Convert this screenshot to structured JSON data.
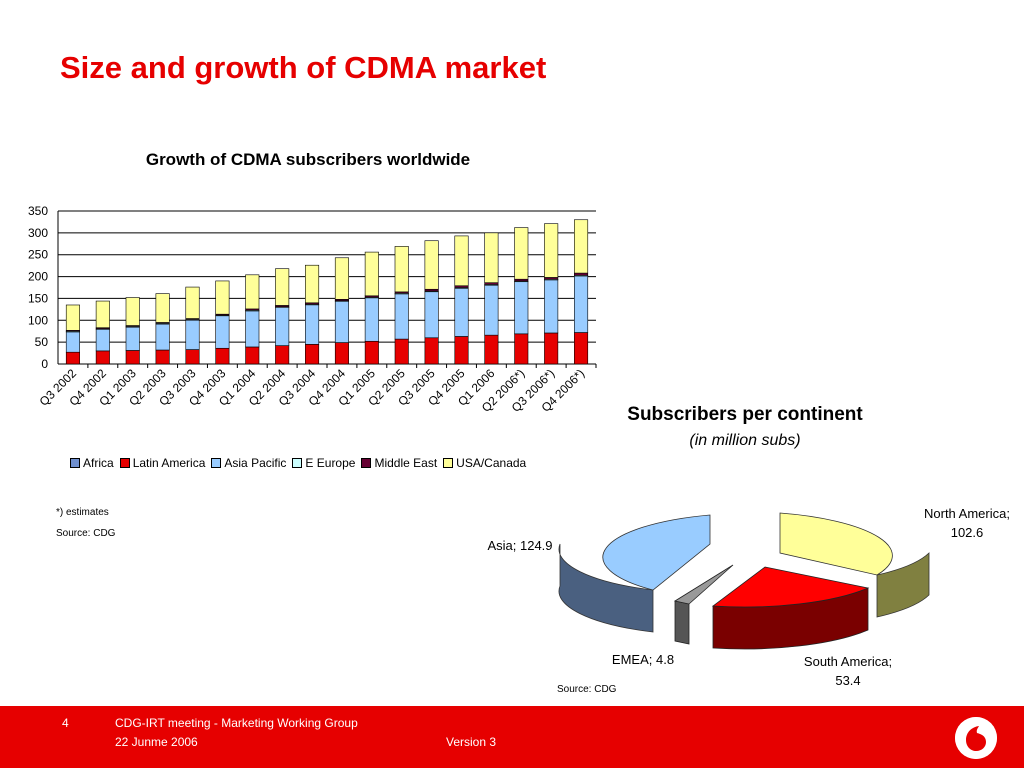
{
  "slide": {
    "title": "Size and growth of CDMA market"
  },
  "bar_chart": {
    "title": "Growth of CDMA subscribers worldwide",
    "footnote": "*) estimates",
    "source": "Source: CDG"
  },
  "pie_chart": {
    "title": "Subscribers per continent",
    "subtitle": "(in million subs)",
    "source": "Source: CDG",
    "label_north_america_1": "North America;",
    "label_north_america_2": "102.6",
    "label_asia": "Asia; 124.9",
    "label_emea": "EMEA; 4.8",
    "label_south_america_1": "South America;",
    "label_south_america_2": "53.4"
  },
  "chart_data": [
    {
      "type": "bar",
      "stacked": true,
      "title": "Growth of CDMA subscribers worldwide",
      "categories": [
        "Q3 2002",
        "Q4 2002",
        "Q1 2003",
        "Q2 2003",
        "Q3 2003",
        "Q4 2003",
        "Q1 2004",
        "Q2 2004",
        "Q3 2004",
        "Q4 2004",
        "Q1 2005",
        "Q2 2005",
        "Q3 2005",
        "Q4 2005",
        "Q1 2006",
        "Q2 2006*)",
        "Q3 2006*)",
        "Q4 2006*)"
      ],
      "ylim": [
        0,
        350
      ],
      "yticks": [
        0,
        50,
        100,
        150,
        200,
        250,
        300,
        350
      ],
      "grid": true,
      "legend_position": "bottom",
      "series": [
        {
          "name": "Africa",
          "color": "#6f8fcf",
          "values": [
            0,
            0,
            0,
            0,
            0,
            0,
            0,
            0,
            0,
            0,
            0,
            0,
            0,
            0,
            0,
            0,
            0,
            0
          ]
        },
        {
          "name": "Latin America",
          "color": "#e60000",
          "values": [
            27,
            30,
            31,
            32,
            33,
            36,
            39,
            42,
            45,
            49,
            52,
            57,
            60,
            63,
            66,
            69,
            71,
            72
          ]
        },
        {
          "name": "Asia Pacific",
          "color": "#99ccff",
          "values": [
            47,
            50,
            54,
            60,
            68,
            75,
            83,
            88,
            91,
            95,
            100,
            104,
            106,
            111,
            115,
            120,
            122,
            130
          ]
        },
        {
          "name": "E Europe",
          "color": "#ccffff",
          "values": [
            1,
            1,
            1,
            1,
            1,
            1,
            1,
            1,
            1,
            1,
            1,
            1,
            1,
            1,
            1,
            1,
            1,
            1
          ]
        },
        {
          "name": "Middle East",
          "color": "#660033",
          "values": [
            2,
            2,
            2,
            2,
            2,
            2,
            3,
            3,
            3,
            3,
            3,
            3,
            4,
            4,
            4,
            4,
            4,
            5
          ]
        },
        {
          "name": "USA/Canada",
          "color": "#ffff99",
          "values": [
            58,
            61,
            64,
            66,
            72,
            76,
            78,
            84,
            86,
            95,
            100,
            104,
            111,
            114,
            114,
            118,
            123,
            122
          ]
        }
      ]
    },
    {
      "type": "pie",
      "title": "Subscribers per continent",
      "subtitle": "(in million subs)",
      "slices": [
        {
          "label": "North America",
          "value": 102.6,
          "color": "#ffff99"
        },
        {
          "label": "South America",
          "value": 53.4,
          "color": "#ff0000"
        },
        {
          "label": "EMEA",
          "value": 4.8,
          "color": "#808080"
        },
        {
          "label": "Asia",
          "value": 124.9,
          "color": "#99ccff"
        }
      ]
    }
  ],
  "footer": {
    "page_number": "4",
    "meeting": "CDG-IRT meeting - Marketing Working Group",
    "date": "22 Junme 2006",
    "version": "Version 3",
    "logo": "vodafone-logo"
  },
  "colors": {
    "brand_red": "#e60000"
  }
}
